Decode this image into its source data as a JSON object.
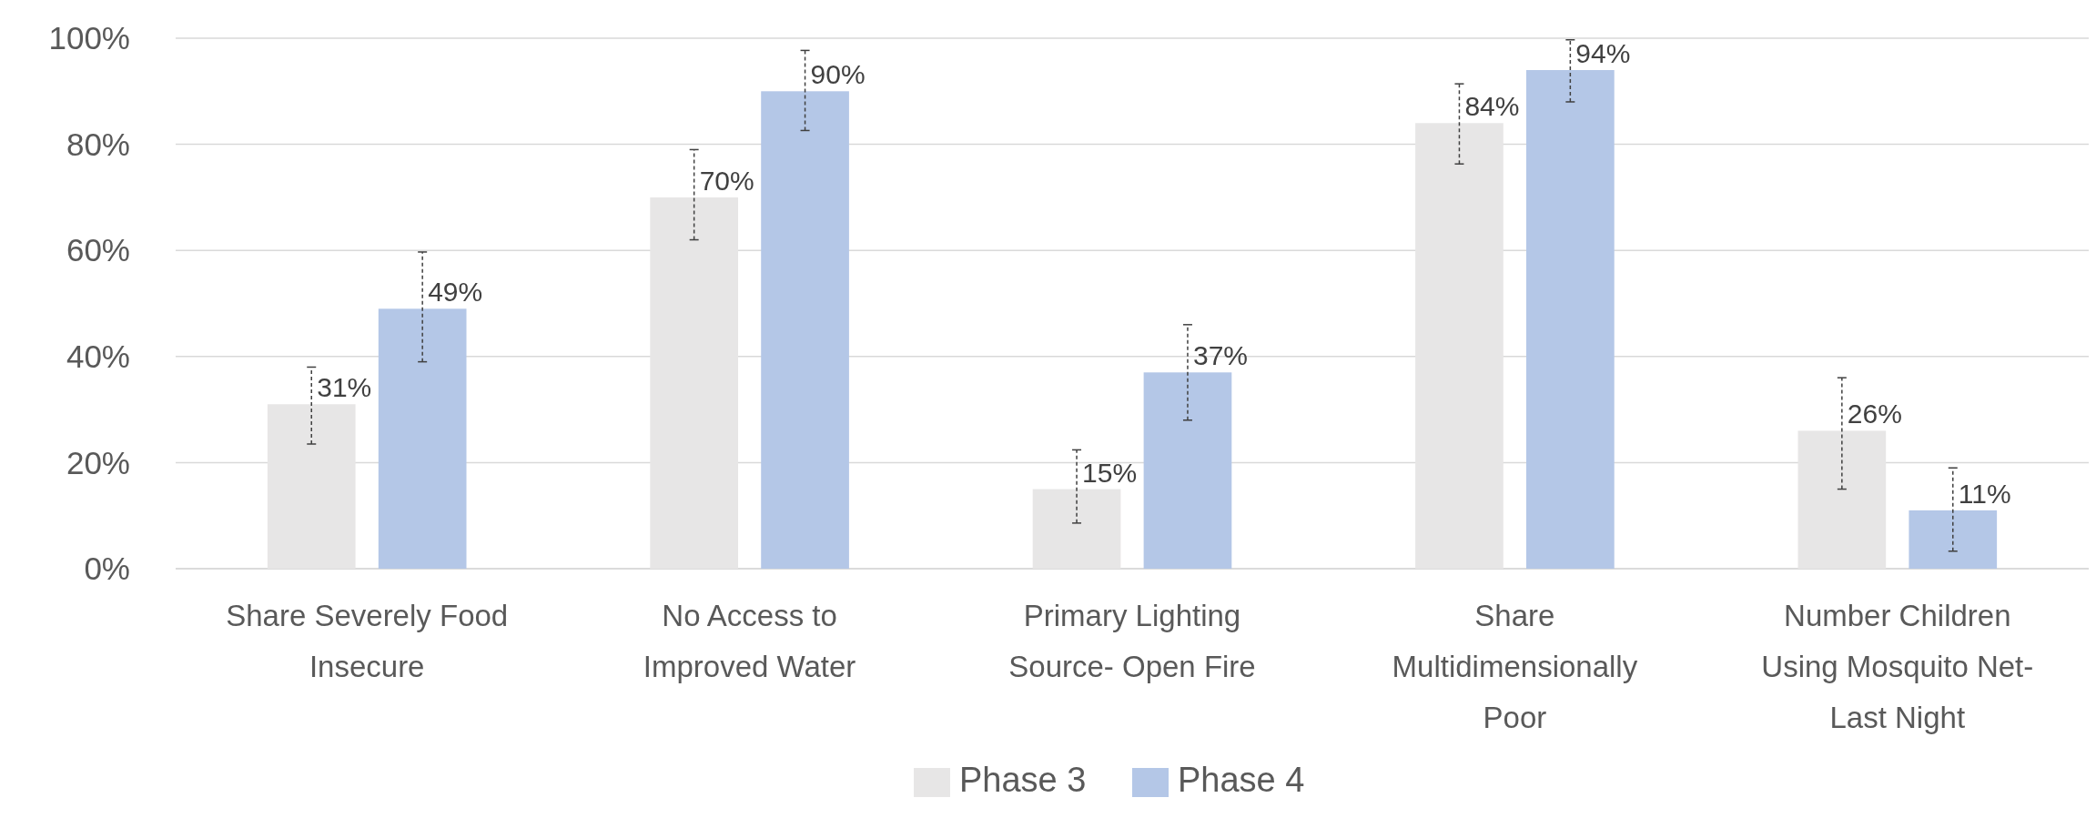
{
  "chart_data": {
    "type": "bar",
    "categories": [
      "Share Severely Food Insecure",
      "No Access to Improved Water",
      "Primary Lighting Source- Open Fire",
      "Share Multidimensionally Poor",
      "Number Children Using Mosquito Net-Last Night"
    ],
    "series": [
      {
        "name": "Phase 3",
        "color": "#e7e6e6",
        "values": [
          31,
          70,
          15,
          84,
          26
        ],
        "value_labels": [
          "31%",
          "70%",
          "15%",
          "84%",
          "26%"
        ],
        "errors": [
          [
            23.5,
            38
          ],
          [
            62,
            79
          ],
          [
            8.6,
            22.4
          ],
          [
            76.3,
            91.4
          ],
          [
            15,
            36
          ]
        ]
      },
      {
        "name": "Phase 4",
        "color": "#b4c7e7",
        "values": [
          49,
          90,
          37,
          94,
          11
        ],
        "value_labels": [
          "49%",
          "90%",
          "37%",
          "94%",
          "11%"
        ],
        "errors": [
          [
            39,
            59.7
          ],
          [
            82.6,
            97.7
          ],
          [
            28,
            46
          ],
          [
            88,
            99.7
          ],
          [
            3.3,
            19
          ]
        ]
      }
    ],
    "ylim": [
      0,
      100
    ],
    "yticks": [
      {
        "value": 0,
        "label": "0%"
      },
      {
        "value": 20,
        "label": "20%"
      },
      {
        "value": 40,
        "label": "40%"
      },
      {
        "value": 60,
        "label": "60%"
      },
      {
        "value": 80,
        "label": "80%"
      },
      {
        "value": 100,
        "label": "100%"
      }
    ],
    "grid": "y",
    "legend": "bottom"
  }
}
